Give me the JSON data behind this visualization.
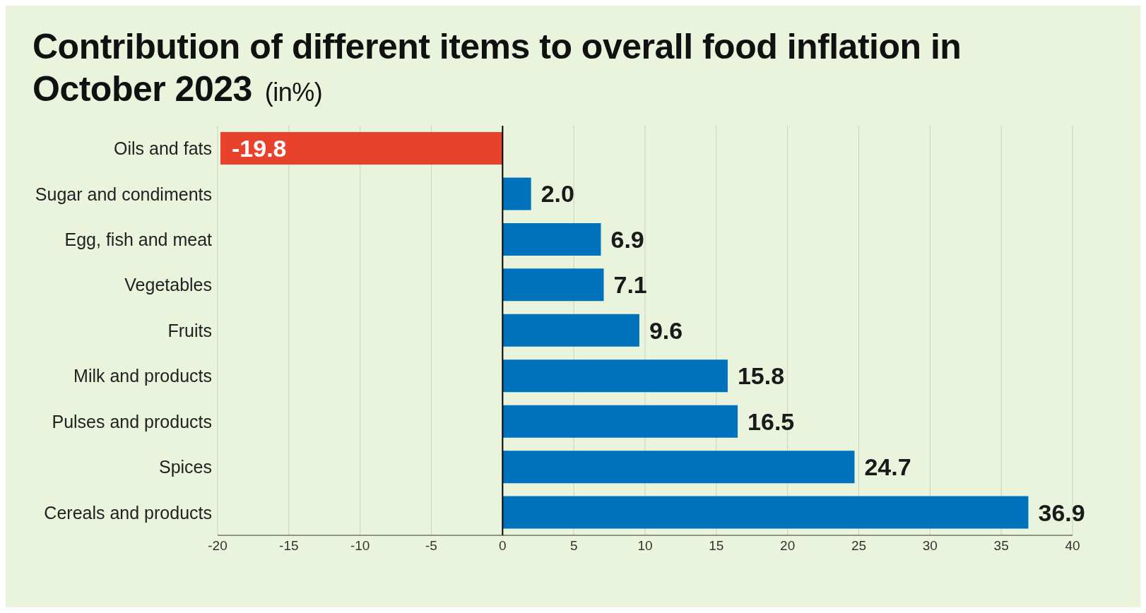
{
  "chart_data": {
    "type": "bar",
    "orientation": "horizontal",
    "title": "Contribution of different items to overall food inflation in October 2023",
    "subtitle": "(in%)",
    "categories": [
      "Oils and fats",
      "Sugar and condiments",
      "Egg, fish and meat",
      "Vegetables",
      "Fruits",
      "Milk and products",
      "Pulses and products",
      "Spices",
      "Cereals and products"
    ],
    "values": [
      -19.8,
      2.0,
      6.9,
      7.1,
      9.6,
      15.8,
      16.5,
      24.7,
      36.9
    ],
    "colors": [
      "#e8412c",
      "#0072bc",
      "#0072bc",
      "#0072bc",
      "#0072bc",
      "#0072bc",
      "#0072bc",
      "#0072bc",
      "#0072bc"
    ],
    "value_labels": [
      "-19.8",
      "2.0",
      "6.9",
      "7.1",
      "9.6",
      "15.8",
      "16.5",
      "24.7",
      "36.9"
    ],
    "xlim": [
      -20,
      40
    ],
    "xticks": [
      -20,
      -15,
      -10,
      -5,
      0,
      5,
      10,
      15,
      20,
      25,
      30,
      35,
      40
    ],
    "ref_lines": [
      {
        "axis": "x",
        "value": 0,
        "color": "#000000"
      }
    ],
    "grid": "x"
  }
}
